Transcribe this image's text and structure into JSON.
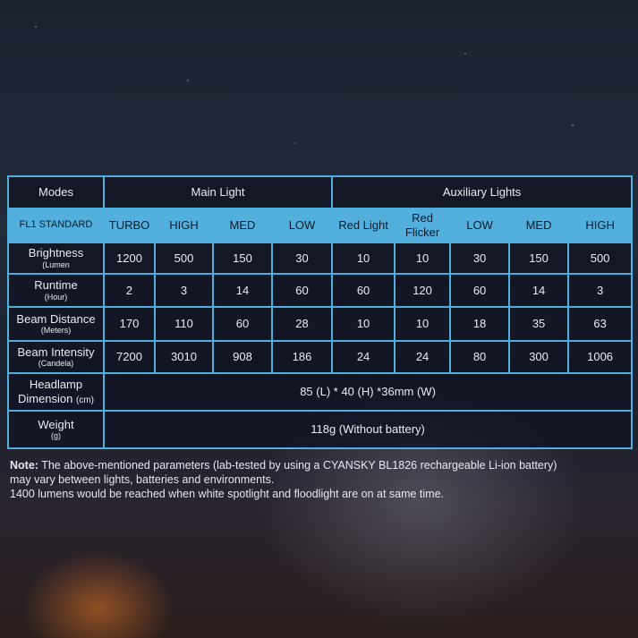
{
  "header": {
    "modes": "Modes",
    "main": "Main Light",
    "aux": "Auxiliary Lights"
  },
  "sub": [
    "FL1 STANDARD",
    "TURBO",
    "HIGH",
    "MED",
    "LOW",
    "Red Light",
    "Red Flicker",
    "LOW",
    "MED",
    "HIGH"
  ],
  "rows": [
    {
      "label": "Brightness",
      "unit": "(Lumen",
      "values": [
        "1200",
        "500",
        "150",
        "30",
        "10",
        "10",
        "30",
        "150",
        "500"
      ]
    },
    {
      "label": "Runtime",
      "unit": "(Hour)",
      "values": [
        "2",
        "3",
        "14",
        "60",
        "60",
        "120",
        "60",
        "14",
        "3"
      ]
    },
    {
      "label": "Beam Distance",
      "unit": "(Meters)",
      "values": [
        "170",
        "110",
        "60",
        "28",
        "10",
        "10",
        "18",
        "35",
        "63"
      ]
    },
    {
      "label": "Beam Intensity",
      "unit": "(Candela)",
      "values": [
        "7200",
        "3010",
        "908",
        "186",
        "24",
        "24",
        "80",
        "300",
        "1006"
      ]
    }
  ],
  "dimension": {
    "label": "Headlamp Dimension",
    "unit": "(cm)",
    "value": "85 (L) * 40 (H) *36mm (W)"
  },
  "weight": {
    "label": "Weight",
    "unit": "(g)",
    "value": "118g (Without battery)"
  },
  "note": {
    "prefix": "Note:",
    "line1": " The above-mentioned parameters (lab-tested by using a CYANSKY BL1826 rechargeable Li-ion battery)",
    "line2": "may vary between lights, batteries and environments.",
    "line3": "1400 lumens would be reached when white spotlight and floodlight are on at same time."
  }
}
